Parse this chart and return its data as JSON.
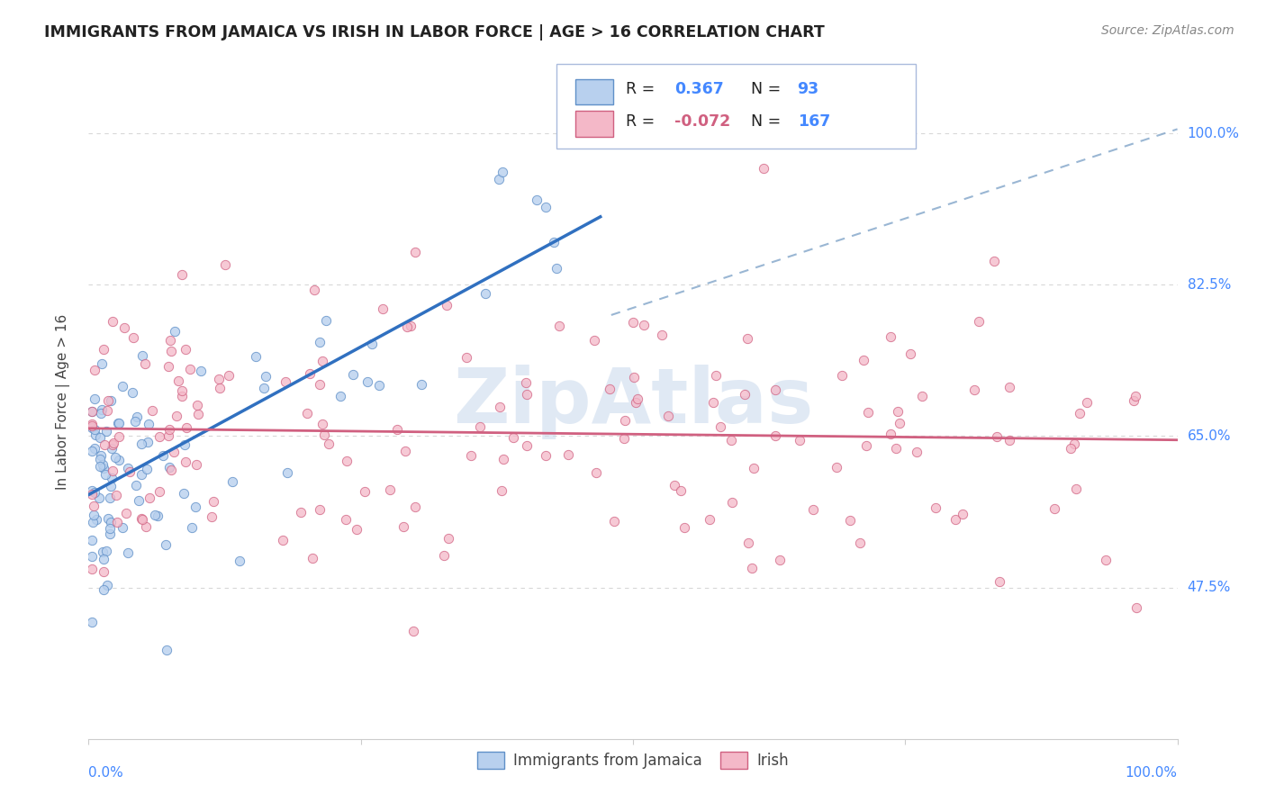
{
  "title": "IMMIGRANTS FROM JAMAICA VS IRISH IN LABOR FORCE | AGE > 16 CORRELATION CHART",
  "source": "Source: ZipAtlas.com",
  "ylabel": "In Labor Force | Age > 16",
  "ytick_labels": [
    "47.5%",
    "65.0%",
    "82.5%",
    "100.0%"
  ],
  "ytick_values": [
    0.475,
    0.65,
    0.825,
    1.0
  ],
  "xlim": [
    0.0,
    1.0
  ],
  "ylim": [
    0.3,
    1.08
  ],
  "jamaica_color_face": "#b8d0ee",
  "jamaica_color_edge": "#6090c8",
  "irish_color_face": "#f4b8c8",
  "irish_color_edge": "#d06080",
  "jamaica_line_color": "#3070c0",
  "irish_line_color": "#d06080",
  "dashed_line_color": "#88aacc",
  "watermark": "ZipAtlas",
  "watermark_color": "#c8d8ec",
  "grid_color": "#d8d8d8",
  "title_color": "#222222",
  "source_color": "#888888",
  "axis_label_color": "#4488ff",
  "ylabel_color": "#444444",
  "legend_r_color": "#4488ff",
  "legend_n_color": "#4488ff",
  "legend_border_color": "#aabbdd",
  "bottom_legend_labels": [
    "Immigrants from Jamaica",
    "Irish"
  ],
  "legend_line1": "R =  0.367   N =  93",
  "legend_line2": "R = -0.072  N = 167",
  "r1_val": "0.367",
  "n1_val": "93",
  "r2_val": "-0.072",
  "n2_val": "167"
}
